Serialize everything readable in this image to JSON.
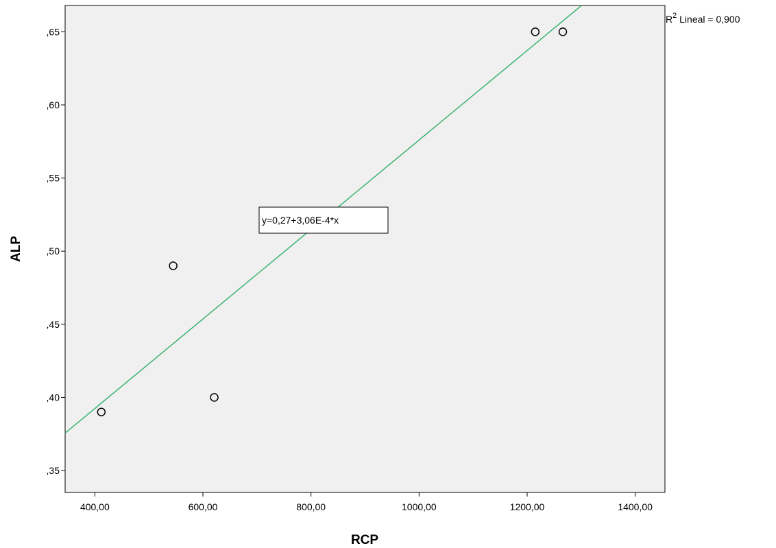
{
  "chart_data": {
    "type": "scatter",
    "xlabel": "RCP",
    "ylabel": "ALP",
    "xlim": [
      345,
      1455
    ],
    "ylim": [
      0.335,
      0.668
    ],
    "x_ticks": [
      400,
      600,
      800,
      1000,
      1200,
      1400
    ],
    "x_tick_labels": [
      "400,00",
      "600,00",
      "800,00",
      "1000,00",
      "1200,00",
      "1400,00"
    ],
    "y_ticks": [
      0.35,
      0.4,
      0.45,
      0.5,
      0.55,
      0.6,
      0.65
    ],
    "y_tick_labels": [
      ",35",
      ",40",
      ",45",
      ",50",
      ",55",
      ",60",
      ",65"
    ],
    "series": [
      {
        "points": [
          {
            "x": 412,
            "y": 0.39
          },
          {
            "x": 545,
            "y": 0.49
          },
          {
            "x": 621,
            "y": 0.4
          },
          {
            "x": 1215,
            "y": 0.65
          },
          {
            "x": 1266,
            "y": 0.65
          }
        ]
      }
    ],
    "fit_line": {
      "intercept": 0.27,
      "slope": 0.000306,
      "color": "#3cb371"
    },
    "equation_label": "y=0,27+3,06E-4*x",
    "r2_label_prefix": "R",
    "r2_label_sup": "2",
    "r2_label_text": " Lineal = 0,900",
    "plot_background": "#f0f0f0",
    "grid": false
  }
}
